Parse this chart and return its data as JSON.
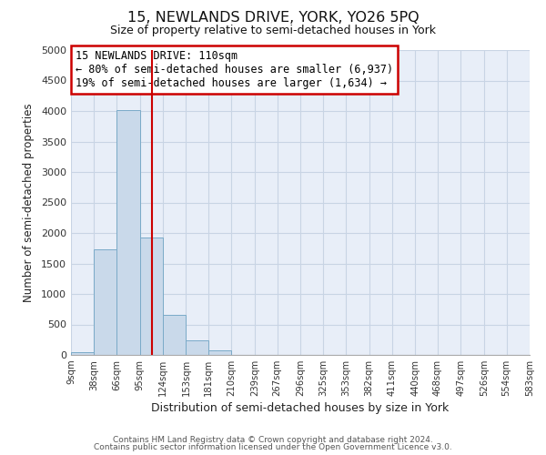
{
  "title": "15, NEWLANDS DRIVE, YORK, YO26 5PQ",
  "subtitle": "Size of property relative to semi-detached houses in York",
  "xlabel": "Distribution of semi-detached houses by size in York",
  "ylabel": "Number of semi-detached properties",
  "bin_edges": [
    9,
    38,
    66,
    95,
    124,
    153,
    181,
    210,
    239,
    267,
    296,
    325,
    353,
    382,
    411,
    440,
    468,
    497,
    526,
    554,
    583
  ],
  "bar_heights": [
    50,
    1725,
    4010,
    1930,
    650,
    240,
    80,
    0,
    0,
    0,
    0,
    0,
    0,
    0,
    0,
    0,
    0,
    0,
    0,
    0
  ],
  "bar_color": "#c9d9ea",
  "bar_edge_color": "#7aaac8",
  "property_value": 110,
  "vline_color": "#cc0000",
  "annotation_text": "15 NEWLANDS DRIVE: 110sqm\n← 80% of semi-detached houses are smaller (6,937)\n19% of semi-detached houses are larger (1,634) →",
  "annotation_box_color": "#ffffff",
  "annotation_box_edge_color": "#cc0000",
  "ylim": [
    0,
    5000
  ],
  "yticks": [
    0,
    500,
    1000,
    1500,
    2000,
    2500,
    3000,
    3500,
    4000,
    4500,
    5000
  ],
  "grid_color": "#c8d4e4",
  "footer_line1": "Contains HM Land Registry data © Crown copyright and database right 2024.",
  "footer_line2": "Contains public sector information licensed under the Open Government Licence v3.0.",
  "background_color": "#ffffff",
  "plot_bg_color": "#e8eef8"
}
